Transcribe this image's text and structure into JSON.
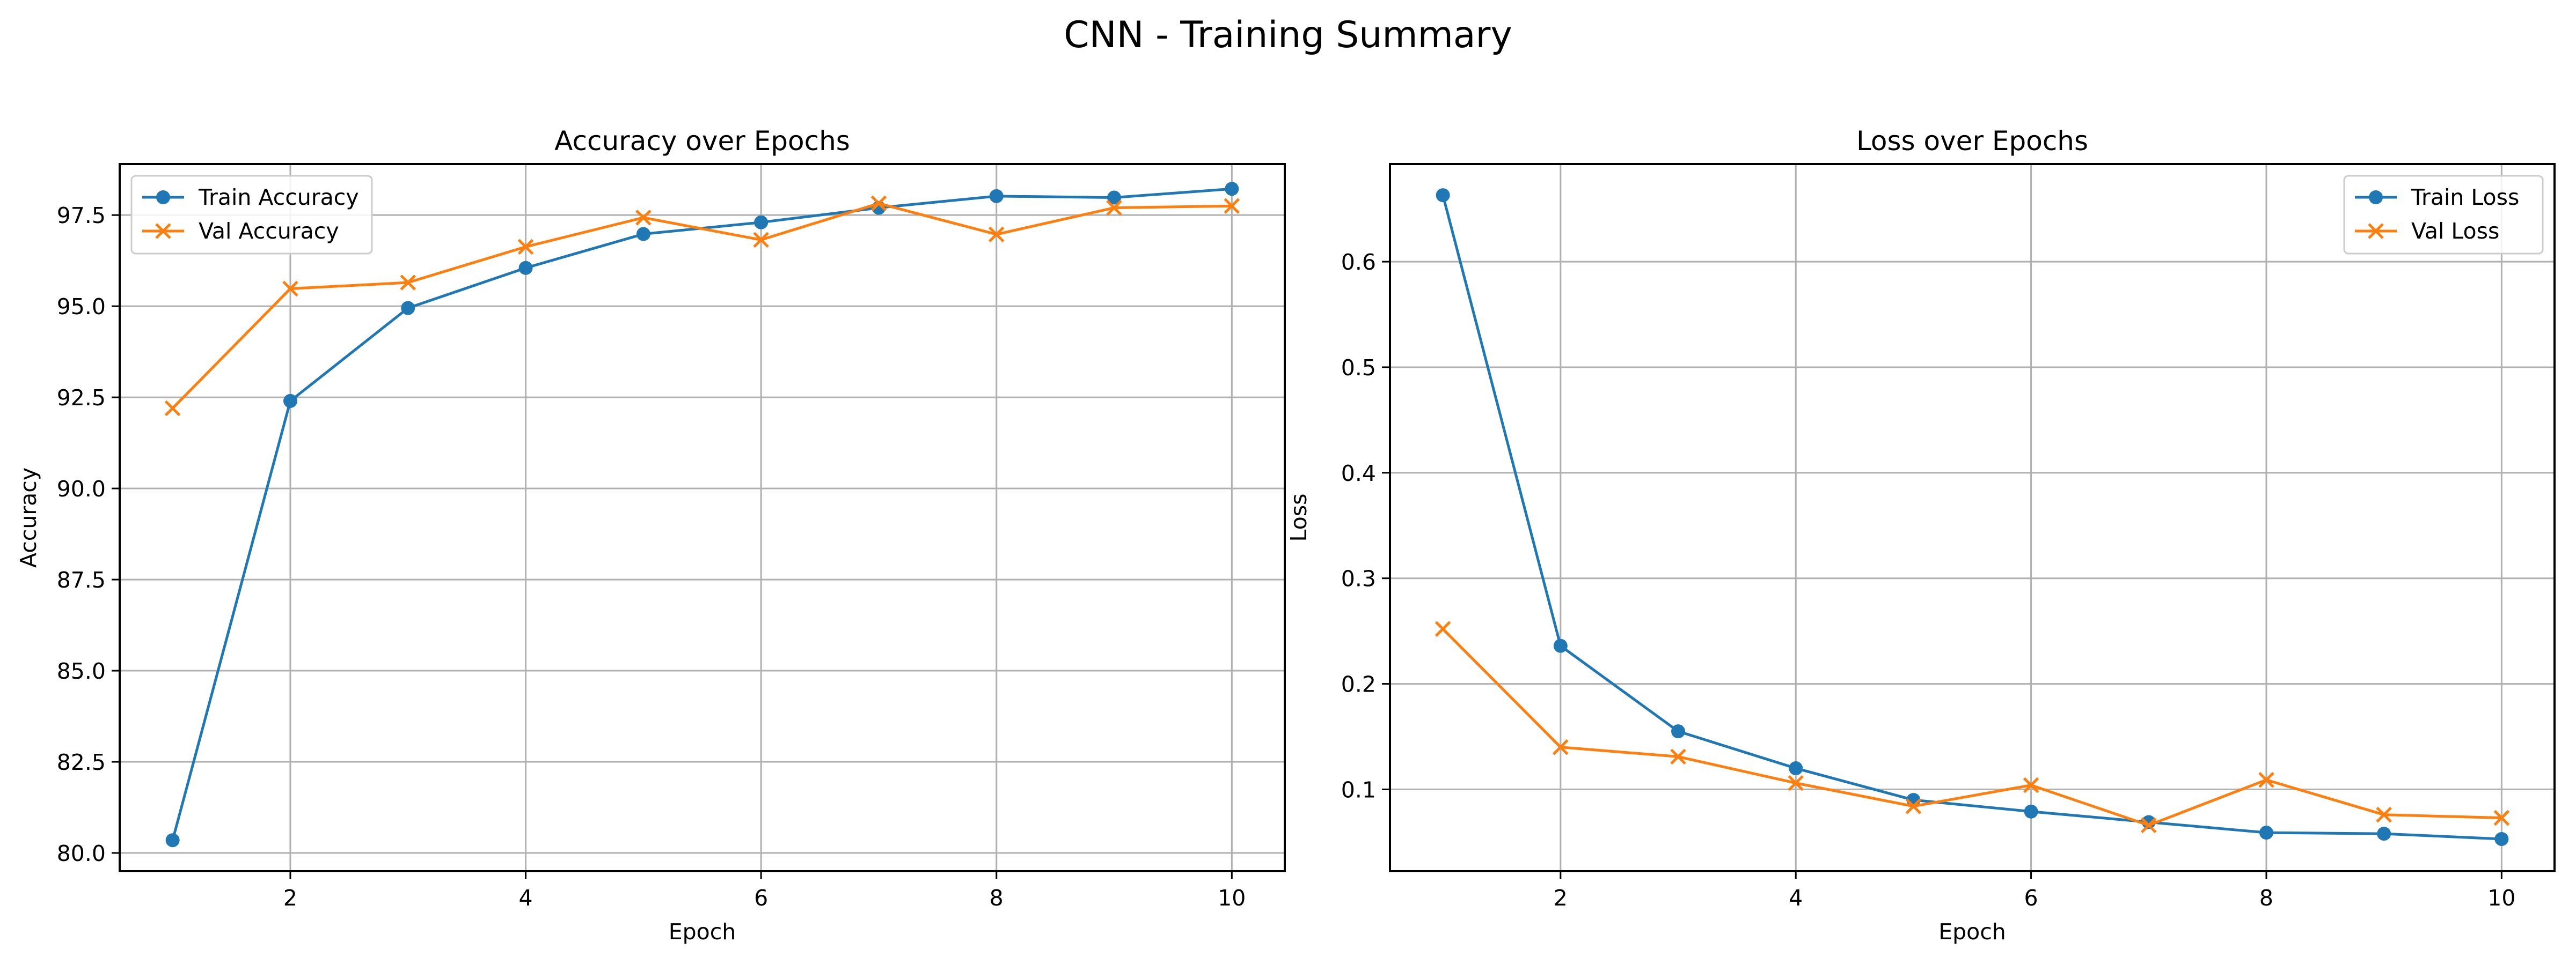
{
  "figure": {
    "title": "CNN - Training Summary"
  },
  "chart_data": [
    {
      "type": "line",
      "title": "Accuracy over Epochs",
      "xlabel": "Epoch",
      "ylabel": "Accuracy",
      "x": [
        1,
        2,
        3,
        4,
        5,
        6,
        7,
        8,
        9,
        10
      ],
      "xlim": [
        0.55,
        10.45
      ],
      "ylim": [
        79.5,
        98.9
      ],
      "xticks": [
        2,
        4,
        6,
        8,
        10
      ],
      "yticks": [
        80.0,
        82.5,
        85.0,
        87.5,
        90.0,
        92.5,
        95.0,
        97.5
      ],
      "ytick_decimals": 1,
      "grid": true,
      "legend_position": "upper left",
      "series": [
        {
          "name": "Train Accuracy",
          "color": "#1f77b4",
          "marker": "circle",
          "values": [
            80.35,
            92.4,
            94.95,
            96.05,
            96.98,
            97.3,
            97.7,
            98.02,
            97.98,
            98.22
          ]
        },
        {
          "name": "Val Accuracy",
          "color": "#ff7f0e",
          "marker": "x",
          "values": [
            92.2,
            95.48,
            95.65,
            96.63,
            97.43,
            96.82,
            97.82,
            96.97,
            97.7,
            97.75
          ]
        }
      ]
    },
    {
      "type": "line",
      "title": "Loss over Epochs",
      "xlabel": "Epoch",
      "ylabel": "Loss",
      "x": [
        1,
        2,
        3,
        4,
        5,
        6,
        7,
        8,
        9,
        10
      ],
      "xlim": [
        0.55,
        10.45
      ],
      "ylim": [
        0.0225,
        0.6925
      ],
      "xticks": [
        2,
        4,
        6,
        8,
        10
      ],
      "yticks": [
        0.1,
        0.2,
        0.3,
        0.4,
        0.5,
        0.6
      ],
      "ytick_decimals": 1,
      "grid": true,
      "legend_position": "upper right",
      "series": [
        {
          "name": "Train Loss",
          "color": "#1f77b4",
          "marker": "circle",
          "values": [
            0.663,
            0.236,
            0.155,
            0.12,
            0.09,
            0.079,
            0.069,
            0.059,
            0.058,
            0.053
          ]
        },
        {
          "name": "Val Loss",
          "color": "#ff7f0e",
          "marker": "x",
          "values": [
            0.252,
            0.14,
            0.131,
            0.106,
            0.084,
            0.104,
            0.066,
            0.109,
            0.076,
            0.073
          ]
        }
      ]
    }
  ]
}
